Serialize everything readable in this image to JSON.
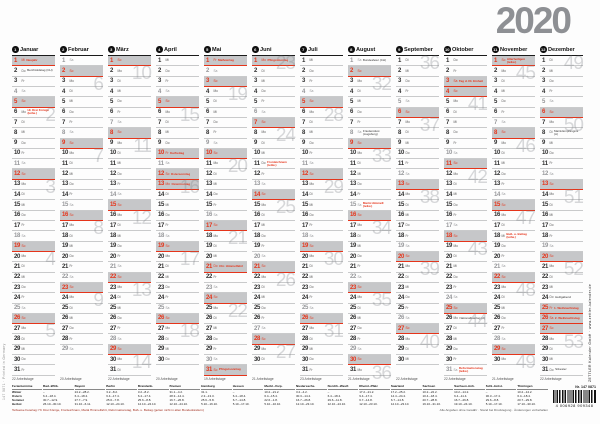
{
  "title": "2020",
  "colors": {
    "accent_red": "#e5341a",
    "weekend_bar": "#c6c7c9",
    "year_gray": "#8e9094"
  },
  "weekday_labels": [
    "Mo",
    "Di",
    "Mi",
    "Do",
    "Fr",
    "Sa",
    "So"
  ],
  "months": [
    {
      "n": "1",
      "name": "Januar",
      "start": 2,
      "len": 31,
      "workdays": "22 Arbeitstage",
      "weeks": [
        [
          6,
          2
        ],
        [
          13,
          3
        ],
        [
          20,
          4
        ],
        [
          27,
          5
        ]
      ],
      "notes": [
        {
          "d": 1,
          "t": "Neujahr",
          "c": "r",
          "hol": true
        },
        {
          "d": 2,
          "t": "Berchtoldstag (CH)",
          "c": "d"
        },
        {
          "d": 6,
          "t": "Hl. Drei Könige (teilw.)",
          "c": "r"
        }
      ]
    },
    {
      "n": "2",
      "name": "Februar",
      "start": 5,
      "len": 29,
      "workdays": "20 Arbeitstage",
      "weeks": [
        [
          3,
          6
        ],
        [
          10,
          7
        ],
        [
          17,
          8
        ],
        [
          24,
          9
        ]
      ],
      "notes": []
    },
    {
      "n": "3",
      "name": "März",
      "start": 6,
      "len": 31,
      "workdays": "22 Arbeitstage",
      "weeks": [
        [
          2,
          10
        ],
        [
          9,
          11
        ],
        [
          16,
          12
        ],
        [
          23,
          13
        ],
        [
          30,
          14
        ]
      ],
      "notes": []
    },
    {
      "n": "4",
      "name": "April",
      "start": 2,
      "len": 30,
      "workdays": "20 Arbeitstage",
      "weeks": [
        [
          6,
          15
        ],
        [
          13,
          16
        ],
        [
          20,
          17
        ],
        [
          27,
          18
        ]
      ],
      "notes": [
        {
          "d": 10,
          "t": "Karfreitag",
          "c": "r",
          "hol": true
        },
        {
          "d": 12,
          "t": "Ostersonntag",
          "c": "r"
        },
        {
          "d": 13,
          "t": "Ostermontag",
          "c": "r",
          "hol": true
        }
      ]
    },
    {
      "n": "5",
      "name": "Mai",
      "start": 4,
      "len": 31,
      "workdays": "19 Arbeitstage",
      "weeks": [
        [
          4,
          19
        ],
        [
          11,
          20
        ],
        [
          18,
          21
        ],
        [
          25,
          22
        ]
      ],
      "notes": [
        {
          "d": 1,
          "t": "Maifeiertag",
          "c": "r",
          "hol": true
        },
        {
          "d": 21,
          "t": "Chr. Himmelfahrt",
          "c": "r",
          "hol": true
        },
        {
          "d": 31,
          "t": "Pfingstsonntag",
          "c": "r"
        }
      ]
    },
    {
      "n": "6",
      "name": "Juni",
      "start": 0,
      "len": 30,
      "workdays": "21 Arbeitstage",
      "weeks": [
        [
          1,
          23
        ],
        [
          8,
          24
        ],
        [
          15,
          25
        ],
        [
          22,
          26
        ],
        [
          29,
          27
        ]
      ],
      "notes": [
        {
          "d": 1,
          "t": "Pfingstmontag",
          "c": "r",
          "hol": true
        },
        {
          "d": 11,
          "t": "Fronleichnam (teilw.)",
          "c": "r"
        }
      ]
    },
    {
      "n": "7",
      "name": "Juli",
      "start": 2,
      "len": 31,
      "workdays": "23 Arbeitstage",
      "weeks": [
        [
          6,
          28
        ],
        [
          13,
          29
        ],
        [
          20,
          30
        ],
        [
          27,
          31
        ]
      ],
      "notes": []
    },
    {
      "n": "8",
      "name": "August",
      "start": 5,
      "len": 31,
      "workdays": "21 Arbeitstage",
      "weeks": [
        [
          3,
          32
        ],
        [
          10,
          33
        ],
        [
          17,
          34
        ],
        [
          24,
          35
        ],
        [
          31,
          36
        ]
      ],
      "notes": [
        {
          "d": 1,
          "t": "Bundesfeier (CH)",
          "c": "d"
        },
        {
          "d": 8,
          "t": "Friedensfest (Augsburg)",
          "c": "d"
        },
        {
          "d": 15,
          "t": "Mariä Himmelf. (teilw.)",
          "c": "r"
        }
      ]
    },
    {
      "n": "9",
      "name": "September",
      "start": 1,
      "len": 30,
      "workdays": "22 Arbeitstage",
      "weeks": [
        [
          1,
          36
        ],
        [
          7,
          37
        ],
        [
          14,
          38
        ],
        [
          21,
          39
        ],
        [
          28,
          40
        ]
      ],
      "notes": []
    },
    {
      "n": "10",
      "name": "Oktober",
      "start": 3,
      "len": 31,
      "workdays": "22 Arbeitstage",
      "weeks": [
        [
          5,
          41
        ],
        [
          12,
          42
        ],
        [
          19,
          43
        ],
        [
          26,
          44
        ]
      ],
      "notes": [
        {
          "d": 3,
          "t": "Tag d. Dt. Einheit",
          "c": "r",
          "hol": true
        },
        {
          "d": 26,
          "t": "Nationalfeiertag (A)",
          "c": "d"
        },
        {
          "d": 31,
          "t": "Reformationstag (teilw.)",
          "c": "r"
        }
      ]
    },
    {
      "n": "11",
      "name": "November",
      "start": 6,
      "len": 30,
      "workdays": "21 Arbeitstage",
      "weeks": [
        [
          2,
          45
        ],
        [
          9,
          46
        ],
        [
          16,
          47
        ],
        [
          23,
          48
        ],
        [
          30,
          49
        ]
      ],
      "notes": [
        {
          "d": 1,
          "t": "Allerheiligen (teilw.)",
          "c": "r"
        },
        {
          "d": 18,
          "t": "Buß- u. Bettag (teilw.)",
          "c": "r"
        }
      ]
    },
    {
      "n": "12",
      "name": "Dezember",
      "start": 1,
      "len": 31,
      "workdays": "22 Arbeitstage",
      "weeks": [
        [
          1,
          49
        ],
        [
          7,
          50
        ],
        [
          14,
          51
        ],
        [
          21,
          52
        ],
        [
          28,
          53
        ]
      ],
      "notes": [
        {
          "d": 8,
          "t": "Mariä Empfängnis (A)",
          "c": "d"
        },
        {
          "d": 24,
          "t": "Heiligabend",
          "c": "d"
        },
        {
          "d": 25,
          "t": "1. Weihnachtstag",
          "c": "r",
          "hol": true
        },
        {
          "d": 26,
          "t": "2. Weihnachtstag",
          "c": "r",
          "hol": true
        },
        {
          "d": 31,
          "t": "Silvester",
          "c": "d"
        }
      ]
    }
  ],
  "holiday_table": {
    "title": "Ferientermine",
    "states": [
      "Bad.-Wttb.",
      "Bayern",
      "Berlin",
      "Brandenb.",
      "Bremen",
      "Hamburg",
      "Hessen",
      "Meckl.-Vorp.",
      "Niedersachs.",
      "Nordrh.-Westf.",
      "Rheinl.-Pfalz",
      "Saarland",
      "Sachsen",
      "Sachsen-Anh.",
      "Schl.-Holst.",
      "Thüringen"
    ],
    "rows": [
      {
        "label": "Winter",
        "cells": [
          "–",
          "24.2.–28.2.",
          "3.2.–8.2.",
          "3.2.–8.2.",
          "31.1.–4.2.",
          "31.1.",
          "–",
          "10.2.–21.2.",
          "3.2.–4.2.",
          "–",
          "17.2.–21.2.",
          "17.2.–25.2.",
          "10.2.–22.2.",
          "10.2.–14.2.",
          "–",
          "10.2.–14.2."
        ]
      },
      {
        "label": "Ostern",
        "cells": [
          "6.4.–18.4.",
          "6.4.–18.4.",
          "6.4.–17.4.",
          "6.4.–17.4.",
          "28.3.–14.4.",
          "2.3.–13.3.",
          "6.4.–18.4.",
          "6.4.–15.4.",
          "30.3.–14.4.",
          "6.4.–18.4.",
          "9.4.–17.4.",
          "14.4.–24.4.",
          "10.4.–18.4.",
          "6.4.–11.4.",
          "30.3.–17.4.",
          "6.4.–18.4."
        ]
      },
      {
        "label": "Sommer",
        "cells": [
          "30.7.–12.9.",
          "27.7.–7.9.",
          "25.6.–7.8.",
          "25.6.–8.8.",
          "16.7.–26.8.",
          "25.6.–5.8.",
          "6.7.–14.8.",
          "22.6.–1.8.",
          "16.7.–26.8.",
          "29.6.–11.8.",
          "6.7.–14.8.",
          "6.7.–14.8.",
          "20.7.–28.8.",
          "16.7.–26.8.",
          "29.6.–8.8.",
          "20.7.–29.8."
        ]
      },
      {
        "label": "Herbst",
        "cells": [
          "26.10.–30.10.",
          "31.10.–6.11.",
          "12.10.–24.10.",
          "12.10.–24.10.",
          "12.10.–24.10.",
          "5.10.–16.10.",
          "5.10.–17.10.",
          "5.10.–10.10.",
          "12.10.–23.10.",
          "12.10.–24.10.",
          "12.10.–23.10.",
          "12.10.–23.10.",
          "19.10.–31.10.",
          "19.10.–24.10.",
          "5.10.–17.10.",
          "17.10.–30.10."
        ]
      }
    ]
  },
  "footnotes": {
    "left": "Teilweise Feiertag: Hl. Drei Könige, Fronleichnam, Mariä Himmelfahrt, Reformationstag, Buß- u. Bettag (gelten nicht in allen Bundesländern)",
    "right": "Alle Angaben ohne Gewähr · Stand bei Drucklegung · Änderungen vorbehalten"
  },
  "barcode": {
    "label": "Nr. 147 0871",
    "digits": "4 006928 909348"
  },
  "side_texts": {
    "right_vertical": "ZETTLER Kalender GmbH · www.zettler-kalender.de",
    "left_vertical": "147 0871 · Printed in Germany"
  }
}
